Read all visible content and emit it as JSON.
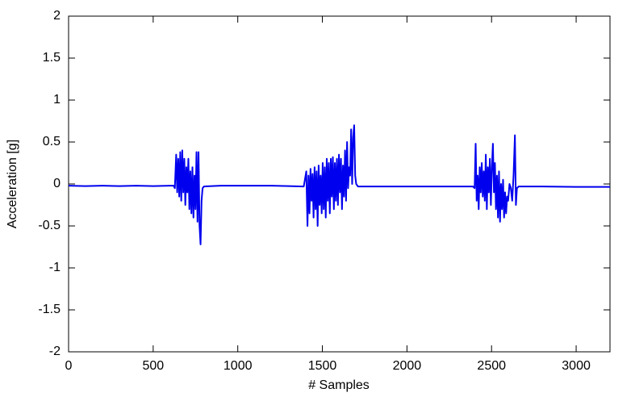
{
  "chart_data": {
    "type": "line",
    "x_label": "# Samples",
    "y_label": "Acceleration [g]",
    "xlim": [
      0,
      3200
    ],
    "xticks": [
      0,
      500,
      1000,
      1500,
      2000,
      2500,
      3000
    ],
    "ylim": [
      -2,
      2
    ],
    "yticks": [
      -2,
      -1.5,
      -1,
      -0.5,
      0,
      0.5,
      1,
      1.5,
      2
    ],
    "grid": false,
    "x": [
      0,
      100,
      200,
      300,
      400,
      500,
      600,
      620,
      628,
      636,
      642,
      648,
      654,
      660,
      666,
      672,
      678,
      684,
      690,
      696,
      702,
      708,
      714,
      720,
      726,
      732,
      738,
      744,
      750,
      756,
      762,
      768,
      774,
      780,
      786,
      792,
      800,
      900,
      1000,
      1100,
      1200,
      1300,
      1390,
      1405,
      1412,
      1418,
      1424,
      1430,
      1436,
      1442,
      1448,
      1454,
      1460,
      1466,
      1472,
      1478,
      1484,
      1490,
      1496,
      1502,
      1508,
      1514,
      1520,
      1526,
      1532,
      1538,
      1544,
      1550,
      1556,
      1562,
      1568,
      1574,
      1580,
      1586,
      1592,
      1598,
      1604,
      1610,
      1616,
      1622,
      1628,
      1634,
      1640,
      1646,
      1652,
      1658,
      1664,
      1670,
      1676,
      1682,
      1688,
      1694,
      1700,
      1710,
      1800,
      1900,
      2000,
      2100,
      2200,
      2300,
      2390,
      2400,
      2406,
      2412,
      2418,
      2424,
      2430,
      2436,
      2442,
      2448,
      2454,
      2460,
      2466,
      2472,
      2478,
      2484,
      2490,
      2496,
      2502,
      2508,
      2514,
      2520,
      2526,
      2532,
      2538,
      2544,
      2550,
      2556,
      2562,
      2568,
      2574,
      2580,
      2586,
      2592,
      2598,
      2606,
      2614,
      2622,
      2630,
      2638,
      2644,
      2650,
      2660,
      2800,
      3000,
      3200
    ],
    "series": [
      {
        "color": "#0000ee",
        "values": [
          -0.02,
          -0.025,
          -0.02,
          -0.025,
          -0.02,
          -0.025,
          -0.02,
          -0.02,
          -0.05,
          0.35,
          -0.1,
          0.3,
          -0.15,
          0.38,
          -0.2,
          0.4,
          -0.1,
          0.3,
          -0.25,
          0.2,
          -0.1,
          0.3,
          -0.3,
          0.15,
          -0.35,
          0.2,
          -0.4,
          0.1,
          -0.3,
          0.38,
          -0.45,
          0.38,
          -0.5,
          -0.72,
          -0.2,
          -0.05,
          -0.03,
          -0.02,
          -0.02,
          -0.02,
          -0.02,
          -0.025,
          -0.03,
          0.15,
          -0.5,
          0.1,
          -0.35,
          0.18,
          -0.2,
          0.12,
          -0.4,
          0.2,
          -0.3,
          0.15,
          -0.5,
          0.22,
          -0.25,
          0.1,
          -0.35,
          0.25,
          -0.3,
          0.2,
          -0.4,
          0.3,
          -0.2,
          0.25,
          -0.35,
          0.3,
          -0.15,
          0.32,
          -0.3,
          0.25,
          -0.2,
          0.3,
          -0.25,
          0.35,
          -0.1,
          0.3,
          -0.3,
          0.22,
          -0.15,
          0.4,
          -0.2,
          0.5,
          -0.05,
          0.2,
          0.1,
          0.65,
          0,
          0.55,
          0.7,
          0.1,
          0,
          -0.03,
          -0.03,
          -0.03,
          -0.03,
          -0.03,
          -0.03,
          -0.03,
          -0.03,
          -0.05,
          0.48,
          -0.2,
          0.1,
          -0.3,
          0.2,
          -0.1,
          0.25,
          -0.15,
          0.15,
          -0.2,
          0.35,
          -0.3,
          0.2,
          -0.1,
          0.3,
          -0.25,
          0.2,
          0.48,
          -0.1,
          0.25,
          -0.3,
          0.1,
          -0.4,
          0.15,
          -0.45,
          0,
          -0.3,
          0.05,
          -0.4,
          -0.1,
          -0.35,
          -0.15,
          -0.2,
          0,
          -0.05,
          -0.2,
          0.1,
          0.58,
          -0.25,
          -0.05,
          -0.03,
          -0.03,
          -0.035,
          -0.035
        ]
      }
    ]
  }
}
